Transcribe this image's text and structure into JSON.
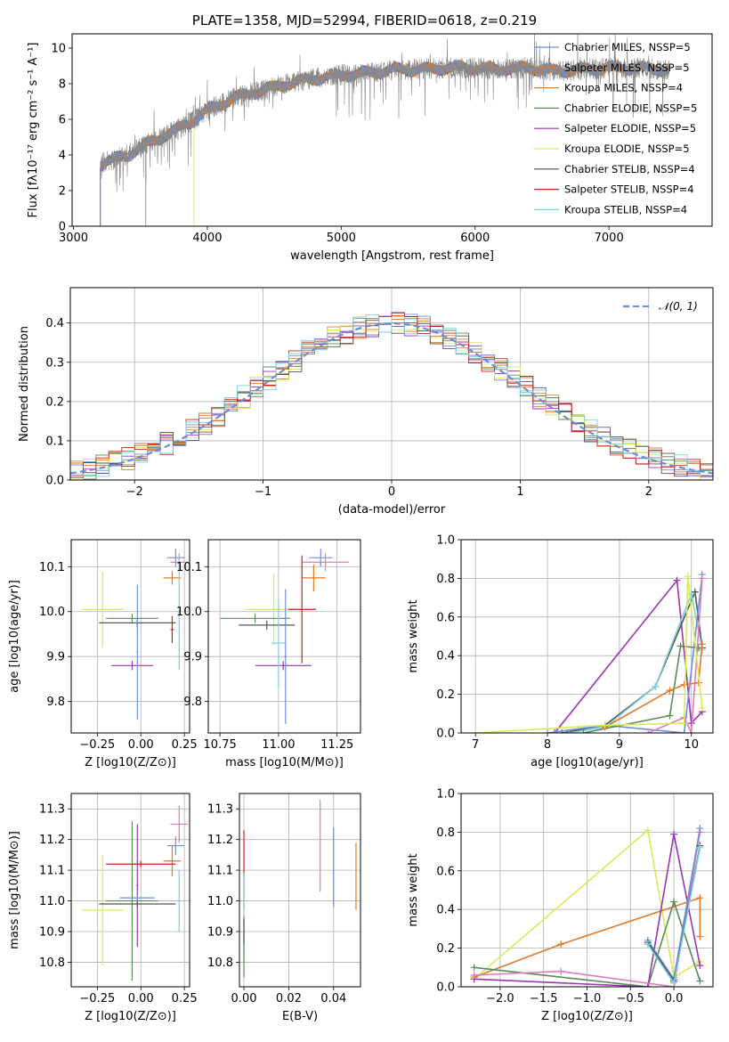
{
  "figure_title": "PLATE=1358, MJD=52994, FIBERID=0618, z=0.219",
  "colors": {
    "chabrier_miles": "#6d8fe0",
    "salpeter_miles": "#e0792a",
    "kroupa_miles": "#d9822b",
    "chabrier_elodie": "#5a8a5a",
    "salpeter_elodie": "#9a34b0",
    "kroupa_elodie": "#d8ea58",
    "chabrier_stelib": "#555555",
    "salpeter_stelib": "#cc1f1f",
    "kroupa_stelib": "#78cfe0",
    "normal": "#6a8fd8",
    "pink": "#e07ab8",
    "spectrum_gray": "#888888"
  },
  "chart_data": [
    {
      "id": "spectrum",
      "type": "line",
      "title": "PLATE=1358, MJD=52994, FIBERID=0618, z=0.219",
      "xlabel": "wavelength [Angstrom, rest frame]",
      "ylabel": "Flux [fλ10⁻¹⁷ erg cm⁻² s⁻¹ A⁻¹]",
      "xlim": [
        2990,
        7770
      ],
      "ylim": [
        0,
        10.8
      ],
      "xticks": [
        "3000",
        "4000",
        "5000",
        "6000",
        "7000"
      ],
      "yticks": [
        "0",
        "2",
        "4",
        "6",
        "8",
        "10"
      ],
      "legend_position": "upper right",
      "legend": [
        {
          "label": "Chabrier MILES, NSSP=5",
          "color_key": "chabrier_miles"
        },
        {
          "label": "Salpeter MILES, NSSP=5",
          "color_key": "salpeter_miles"
        },
        {
          "label": "Kroupa MILES, NSSP=4",
          "color_key": "kroupa_miles"
        },
        {
          "label": "Chabrier ELODIE, NSSP=5",
          "color_key": "chabrier_elodie"
        },
        {
          "label": "Salpeter ELODIE, NSSP=5",
          "color_key": "salpeter_elodie"
        },
        {
          "label": "Kroupa ELODIE, NSSP=5",
          "color_key": "kroupa_elodie"
        },
        {
          "label": "Chabrier STELIB, NSSP=4",
          "color_key": "chabrier_stelib"
        },
        {
          "label": "Salpeter STELIB, NSSP=4",
          "color_key": "salpeter_stelib"
        },
        {
          "label": "Kroupa STELIB, NSSP=4",
          "color_key": "kroupa_stelib"
        }
      ],
      "continuum": {
        "x": [
          3200,
          3400,
          3600,
          3800,
          4000,
          4200,
          4400,
          4600,
          4800,
          5000,
          5200,
          5400,
          5600,
          5800,
          6000,
          6200,
          6400,
          6600,
          6800,
          7000,
          7200,
          7400
        ],
        "y": [
          3.5,
          4.0,
          4.8,
          5.5,
          6.5,
          7.2,
          7.6,
          8.0,
          8.3,
          8.5,
          8.6,
          8.8,
          8.8,
          8.9,
          8.9,
          8.8,
          8.9,
          8.7,
          8.8,
          8.9,
          8.9,
          8.8
        ]
      },
      "model_start_x": {
        "salpeter_miles": 3540,
        "kroupa_elodie": 3900,
        "kroupa_stelib": 3200
      }
    },
    {
      "id": "residual_histogram",
      "type": "line",
      "xlabel": "(data-model)/error",
      "ylabel": "Normed distribution",
      "xlim": [
        -2.5,
        2.5
      ],
      "ylim": [
        0,
        0.49
      ],
      "xticks": [
        "−2",
        "−1",
        "0",
        "1",
        "2"
      ],
      "yticks": [
        "0.0",
        "0.1",
        "0.2",
        "0.3",
        "0.4"
      ],
      "legend_position": "upper right",
      "legend": [
        {
          "label": "𝒩(0, 1)",
          "color_key": "normal"
        }
      ],
      "normal_curve": {
        "mean": 0,
        "sigma": 1
      },
      "bin_width": 0.1
    },
    {
      "id": "age_vs_Z",
      "type": "scatter",
      "xlabel": "Z [log10(Z/Z⊙)]",
      "ylabel": "age  [log10(age/yr)]",
      "xlim": [
        -0.4,
        0.28
      ],
      "ylim": [
        9.73,
        10.16
      ],
      "xticks": [
        "−0.25",
        "0.00",
        "0.25"
      ],
      "yticks": [
        "9.8",
        "9.9",
        "10.0",
        "10.1"
      ],
      "points": [
        {
          "color_key": "chabrier_miles",
          "x": 0.2,
          "xerr": 0.05,
          "y": 10.12,
          "yerr": 0.02
        },
        {
          "color_key": "salpeter_miles",
          "x": 0.18,
          "xerr": 0.05,
          "y": 10.075,
          "yerr": 0.015
        },
        {
          "color_key": "pink",
          "x": 0.22,
          "xerr": 0.05,
          "y": 10.11,
          "yerr": 0.02
        },
        {
          "color_key": "kroupa_elodie",
          "x": -0.22,
          "xerr": 0.12,
          "y": 10.005,
          "yerr": 0.085
        },
        {
          "color_key": "chabrier_elodie",
          "x": -0.05,
          "xerr": 0.15,
          "y": 9.985,
          "yerr": 0.01
        },
        {
          "color_key": "salpeter_elodie",
          "x": -0.05,
          "xerr": 0.12,
          "y": 9.88,
          "yerr": 0.01
        },
        {
          "color_key": "chabrier_stelib",
          "x": -0.02,
          "xerr": 0.22,
          "y": 9.975,
          "yerr": 0.01
        },
        {
          "color_key": "salpeter_stelib",
          "x": 0.18,
          "xerr": 0.01,
          "y": 9.96,
          "yerr": 0.03
        },
        {
          "color_key": "kroupa_stelib",
          "x": 0.22,
          "xerr": 0.01,
          "y": 10.0,
          "yerr": 0.13
        },
        {
          "color_key": "normal",
          "x": -0.02,
          "xerr": 0.005,
          "y": 9.91,
          "yerr": 0.15
        }
      ]
    },
    {
      "id": "age_vs_mass",
      "type": "scatter",
      "xlabel": "mass [log10(M/M⊙)]",
      "ylabel": "",
      "xlim": [
        10.7,
        11.35
      ],
      "ylim": [
        9.73,
        10.16
      ],
      "xticks": [
        "10.75",
        "11.00",
        "11.25"
      ],
      "yticks": [
        "9.8",
        "9.9",
        "10.0",
        "10.1"
      ],
      "points": [
        {
          "color_key": "chabrier_miles",
          "x": 11.18,
          "xerr": 0.05,
          "y": 10.12,
          "yerr": 0.02
        },
        {
          "color_key": "salpeter_miles",
          "x": 11.15,
          "xerr": 0.05,
          "y": 10.075,
          "yerr": 0.03
        },
        {
          "color_key": "pink",
          "x": 11.2,
          "xerr": 0.1,
          "y": 10.11,
          "yerr": 0.02
        },
        {
          "color_key": "kroupa_elodie",
          "x": 10.98,
          "xerr": 0.12,
          "y": 10.005,
          "yerr": 0.08
        },
        {
          "color_key": "chabrier_elodie",
          "x": 10.9,
          "xerr": 0.15,
          "y": 9.985,
          "yerr": 0.01
        },
        {
          "color_key": "salpeter_elodie",
          "x": 11.02,
          "xerr": 0.12,
          "y": 9.88,
          "yerr": 0.01
        },
        {
          "color_key": "chabrier_stelib",
          "x": 10.95,
          "xerr": 0.12,
          "y": 9.97,
          "yerr": 0.01
        },
        {
          "color_key": "salpeter_stelib",
          "x": 11.1,
          "xerr": 0.06,
          "y": 10.005,
          "yerr": 0.12
        },
        {
          "color_key": "kroupa_stelib",
          "x": 11.0,
          "xerr": 0.03,
          "y": 9.93,
          "yerr": 0.1
        },
        {
          "color_key": "normal",
          "x": 11.03,
          "xerr": 0.005,
          "y": 9.9,
          "yerr": 0.15
        }
      ]
    },
    {
      "id": "mass_weight_vs_age",
      "type": "line",
      "xlabel": "age  [log10(age/yr)]",
      "ylabel": "mass weight",
      "xlim": [
        6.8,
        10.3
      ],
      "ylim": [
        0,
        1.0
      ],
      "xticks": [
        "7",
        "8",
        "9",
        "10"
      ],
      "yticks": [
        "0.0",
        "0.2",
        "0.4",
        "0.6",
        "0.8",
        "1.0"
      ],
      "series": [
        {
          "color_key": "salpeter_elodie",
          "x": [
            8.1,
            9.8,
            10.0,
            10.15
          ],
          "y": [
            0.0,
            0.79,
            0.05,
            0.11
          ]
        },
        {
          "color_key": "chabrier_stelib",
          "x": [
            8.2,
            8.8,
            9.5,
            10.05,
            10.15
          ],
          "y": [
            0.0,
            0.04,
            0.24,
            0.73,
            0.44
          ]
        },
        {
          "color_key": "kroupa_stelib",
          "x": [
            8.3,
            8.8,
            9.5,
            10.0,
            10.15
          ],
          "y": [
            0.0,
            0.03,
            0.24,
            0.72,
            0.43
          ]
        },
        {
          "color_key": "chabrier_miles",
          "x": [
            8.0,
            8.8,
            9.9,
            10.15
          ],
          "y": [
            0.0,
            0.04,
            0.0,
            0.82
          ]
        },
        {
          "color_key": "chabrier_elodie",
          "x": [
            8.5,
            9.7,
            9.85,
            10.1
          ],
          "y": [
            0.0,
            0.09,
            0.45,
            0.44
          ]
        },
        {
          "color_key": "salpeter_miles",
          "x": [
            8.8,
            9.7,
            9.9,
            10.1,
            10.15
          ],
          "y": [
            0.03,
            0.22,
            0.25,
            0.26,
            0.46
          ]
        },
        {
          "color_key": "pink",
          "x": [
            9.4,
            9.9,
            10.0,
            10.15
          ],
          "y": [
            0.0,
            0.08,
            0.0,
            0.8
          ]
        },
        {
          "color_key": "kroupa_elodie",
          "x": [
            7.0,
            8.8,
            9.9,
            9.95,
            10.15
          ],
          "y": [
            0.0,
            0.04,
            0.05,
            0.81,
            0.13
          ]
        }
      ]
    },
    {
      "id": "mass_vs_Z",
      "type": "scatter",
      "xlabel": "Z [log10(Z/Z⊙)]",
      "ylabel": "mass [log10(M/M⊙)]",
      "xlim": [
        -0.4,
        0.28
      ],
      "ylim": [
        10.72,
        11.35
      ],
      "xticks": [
        "−0.25",
        "0.00",
        "0.25"
      ],
      "yticks": [
        "10.8",
        "10.9",
        "11.0",
        "11.1",
        "11.2",
        "11.3"
      ],
      "points": [
        {
          "color_key": "chabrier_miles",
          "x": 0.2,
          "xerr": 0.05,
          "y": 11.18,
          "yerr": 0.03
        },
        {
          "color_key": "salpeter_miles",
          "x": 0.18,
          "xerr": 0.05,
          "y": 11.13,
          "yerr": 0.05
        },
        {
          "color_key": "pink",
          "x": 0.22,
          "xerr": 0.05,
          "y": 11.25,
          "yerr": 0.06
        },
        {
          "color_key": "kroupa_elodie",
          "x": -0.22,
          "xerr": 0.12,
          "y": 10.97,
          "yerr": 0.18
        },
        {
          "color_key": "chabrier_elodie",
          "x": -0.05,
          "xerr": 0.15,
          "y": 11.0,
          "yerr": 0.26
        },
        {
          "color_key": "salpeter_elodie",
          "x": -0.02,
          "xerr": 0.005,
          "y": 11.05,
          "yerr": 0.2
        },
        {
          "color_key": "chabrier_stelib",
          "x": -0.02,
          "xerr": 0.22,
          "y": 10.99,
          "yerr": 0.01
        },
        {
          "color_key": "salpeter_stelib",
          "x": 0.0,
          "xerr": 0.2,
          "y": 11.12,
          "yerr": 0.01
        },
        {
          "color_key": "kroupa_stelib",
          "x": 0.22,
          "xerr": 0.01,
          "y": 11.0,
          "yerr": 0.1
        },
        {
          "color_key": "normal",
          "x": -0.02,
          "xerr": 0.1,
          "y": 11.01,
          "yerr": 0.01
        }
      ]
    },
    {
      "id": "mass_vs_ebv",
      "type": "scatter",
      "xlabel": "E(B-V)",
      "ylabel": "",
      "xlim": [
        -0.002,
        0.052
      ],
      "ylim": [
        10.72,
        11.35
      ],
      "xticks": [
        "0.00",
        "0.02",
        "0.04"
      ],
      "yticks": [
        "10.8",
        "10.9",
        "11.0",
        "11.1",
        "11.2",
        "11.3"
      ],
      "points": [
        {
          "color_key": "salpeter_stelib",
          "x": 0.0,
          "xerr": 0.0,
          "y": 11.1,
          "yerr": 0.13
        },
        {
          "color_key": "kroupa_stelib",
          "x": 0.0,
          "xerr": 0.0,
          "y": 10.95,
          "yerr": 0.14
        },
        {
          "color_key": "chabrier_elodie",
          "x": 0.0,
          "xerr": 0.0,
          "y": 10.85,
          "yerr": 0.1
        },
        {
          "color_key": "chabrier_stelib",
          "x": 0.0,
          "xerr": 0.0,
          "y": 10.9,
          "yerr": 0.04
        },
        {
          "color_key": "pink",
          "x": 0.034,
          "xerr": 0.0,
          "y": 11.18,
          "yerr": 0.15
        },
        {
          "color_key": "normal",
          "x": 0.04,
          "xerr": 0.0,
          "y": 11.11,
          "yerr": 0.13
        },
        {
          "color_key": "salpeter_miles",
          "x": 0.05,
          "xerr": 0.0,
          "y": 11.08,
          "yerr": 0.11
        }
      ]
    },
    {
      "id": "mass_weight_vs_Z",
      "type": "line",
      "xlabel": "Z [log10(Z/Z⊙)]",
      "ylabel": "mass weight",
      "xlim": [
        -2.45,
        0.45
      ],
      "ylim": [
        0,
        1.0
      ],
      "xticks": [
        "−2.0",
        "−1.5",
        "−1.0",
        "−0.5",
        "0.0"
      ],
      "yticks": [
        "0.0",
        "0.2",
        "0.4",
        "0.6",
        "0.8",
        "1.0"
      ],
      "series": [
        {
          "color_key": "kroupa_elodie",
          "x": [
            -2.3,
            -0.3,
            0.0,
            0.3
          ],
          "y": [
            0.04,
            0.81,
            0.05,
            0.13
          ]
        },
        {
          "color_key": "salpeter_miles",
          "x": [
            -2.3,
            -1.3,
            0.3,
            0.3
          ],
          "y": [
            0.05,
            0.22,
            0.46,
            0.26
          ]
        },
        {
          "color_key": "chabrier_elodie",
          "x": [
            -2.3,
            -0.3,
            0.0,
            0.3
          ],
          "y": [
            0.1,
            0.0,
            0.44,
            0.03
          ]
        },
        {
          "color_key": "salpeter_elodie",
          "x": [
            -2.3,
            -0.3,
            0.0,
            0.3
          ],
          "y": [
            0.04,
            0.0,
            0.79,
            0.11
          ]
        },
        {
          "color_key": "pink",
          "x": [
            -2.3,
            -1.3,
            0.0,
            0.3
          ],
          "y": [
            0.06,
            0.08,
            0.0,
            0.8
          ]
        },
        {
          "color_key": "chabrier_miles",
          "x": [
            -0.3,
            0.0,
            0.3
          ],
          "y": [
            0.24,
            0.04,
            0.82
          ]
        },
        {
          "color_key": "chabrier_stelib",
          "x": [
            -0.3,
            0.0,
            0.3
          ],
          "y": [
            0.23,
            0.03,
            0.73
          ]
        },
        {
          "color_key": "kroupa_stelib",
          "x": [
            -0.3,
            0.0,
            0.3
          ],
          "y": [
            0.22,
            0.02,
            0.72
          ]
        }
      ]
    }
  ]
}
